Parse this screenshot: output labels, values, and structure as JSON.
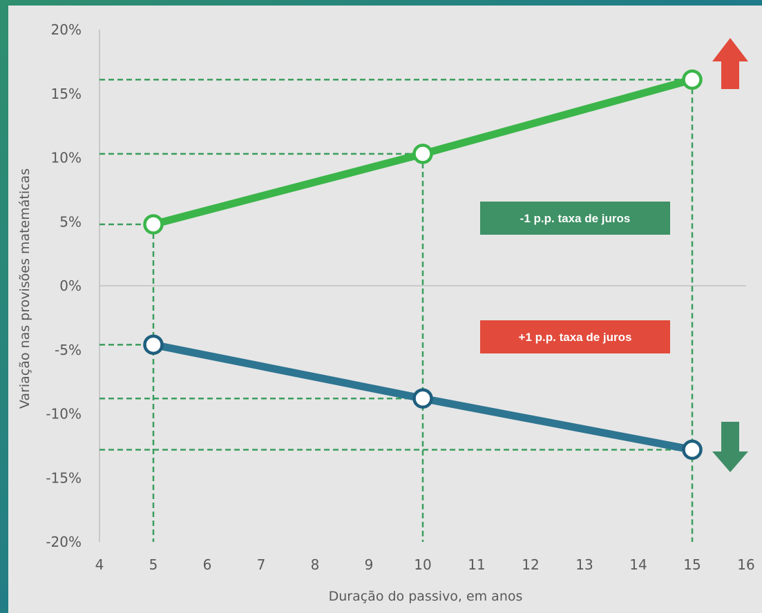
{
  "chart_data": {
    "type": "line",
    "xlabel": "Duração do passivo, em anos",
    "ylabel": "Variação nas provisões matemáticas",
    "xlim": [
      4,
      16
    ],
    "ylim": [
      -20,
      20
    ],
    "x_ticks": [
      "4",
      "5",
      "6",
      "7",
      "8",
      "9",
      "10",
      "11",
      "12",
      "13",
      "14",
      "15",
      "16"
    ],
    "y_ticks": [
      "20%",
      "15%",
      "10%",
      "5%",
      "0%",
      "-5%",
      "-10%",
      "-15%",
      "-20%"
    ],
    "series": [
      {
        "key": "minus",
        "color": "#3bb54a",
        "marker_stroke": "#3bb54a",
        "x": [
          5,
          10,
          15
        ],
        "y": [
          4.8,
          10.3,
          16.1
        ]
      },
      {
        "key": "plus",
        "color": "#2e7591",
        "marker_stroke": "#1f5f7e",
        "x": [
          5,
          10,
          15
        ],
        "y": [
          -4.6,
          -8.8,
          -12.8
        ]
      }
    ],
    "guide_color": "#3a9d5d",
    "annotations": [
      {
        "key": "minus-label",
        "text": "-1 p.p. taxa de juros",
        "color": "#3f9166"
      },
      {
        "key": "plus-label",
        "text": "+1 p.p. taxa de juros",
        "color": "#e24a3b"
      }
    ],
    "arrows": [
      {
        "key": "up-arrow",
        "direction": "up",
        "color": "#e24a3b"
      },
      {
        "key": "down-arrow",
        "direction": "down",
        "color": "#3f8d66"
      }
    ]
  }
}
